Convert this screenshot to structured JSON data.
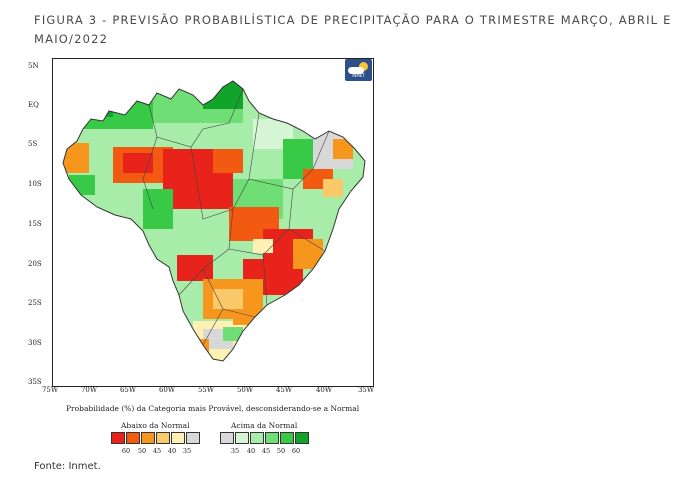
{
  "figure": {
    "title": "FIGURA 3 -  PREVISÃO PROBABILÍSTICA DE PRECIPITAÇÃO PARA O TRIMESTRE MARÇO, ABRIL E MAIO/2022",
    "source": "Fonte: Inmet."
  },
  "map": {
    "y_ticks": [
      "5N",
      "EQ",
      "5S",
      "10S",
      "15S",
      "20S",
      "25S",
      "30S",
      "35S"
    ],
    "x_ticks": [
      "75W",
      "70W",
      "65W",
      "60W",
      "55W",
      "50W",
      "45W",
      "40W",
      "35W"
    ],
    "caption": "Probabilidade (%) da Categoria mais Provável, desconsiderando-se a Normal",
    "logo_text": "INMET"
  },
  "legend": {
    "below_title": "Abaixo da Normal",
    "above_title": "Acima da Normal",
    "below_values": [
      "60",
      "50",
      "45",
      "40",
      "35"
    ],
    "above_values": [
      "35",
      "40",
      "45",
      "50",
      "60"
    ],
    "below_colors": [
      "#e8231c",
      "#f25a12",
      "#f7961d",
      "#fbc96a",
      "#fff0b3",
      "#d8d8d8"
    ],
    "above_colors": [
      "#d8d8d8",
      "#d5f5d5",
      "#a8ecaa",
      "#6fde75",
      "#38c947",
      "#12a32a"
    ]
  }
}
